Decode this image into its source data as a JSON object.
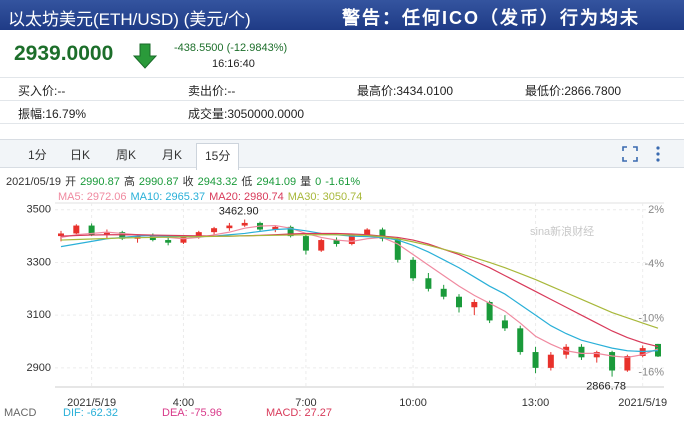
{
  "header": {
    "title": "以太坊美元(ETH/USD) (美元/个)",
    "notice": "警告：任何ICO（发币）行为均未"
  },
  "quote": {
    "price": "2939.0000",
    "change": "-438.5500 (-12.9843%)",
    "time": "16:16:40"
  },
  "stats": [
    [
      "买入价:--",
      "卖出价:--",
      "最高价:3434.0100",
      "最低价:2866.7800"
    ],
    [
      "振幅:16.79%",
      "成交量:3050000.0000"
    ]
  ],
  "tabs": [
    "1分",
    "日K",
    "周K",
    "月K",
    "15分"
  ],
  "active_tab": 4,
  "chart_data": {
    "type": "candlestick",
    "date": "2021/05/19",
    "info": [
      [
        "开",
        "2990.87"
      ],
      [
        "高",
        "2990.87"
      ],
      [
        "收",
        "2943.32"
      ],
      [
        "低",
        "2941.09"
      ],
      [
        "量",
        "0"
      ]
    ],
    "change": "-1.61%",
    "categories": [
      null,
      null,
      "2021/5/19",
      null,
      null,
      null,
      null,
      null,
      "4:00",
      null,
      null,
      null,
      null,
      null,
      null,
      null,
      "7:00",
      null,
      null,
      null,
      null,
      null,
      null,
      "10:00",
      null,
      null,
      null,
      null,
      null,
      null,
      null,
      "13:00",
      null,
      null,
      null,
      null,
      null,
      null,
      "2021/5/19",
      null
    ],
    "open": [
      3400,
      3410,
      3440,
      3405,
      3415,
      3390,
      3400,
      3385,
      3375,
      3395,
      3415,
      3430,
      3440,
      3450,
      3425,
      3435,
      3400,
      3345,
      3385,
      3370,
      3405,
      3425,
      3390,
      3310,
      3240,
      3200,
      3170,
      3130,
      3150,
      3080,
      3050,
      2960,
      2900,
      2950,
      2980,
      2940,
      2960,
      2890,
      2945,
      2990.87
    ],
    "high": [
      3420,
      3445,
      3448,
      3425,
      3420,
      3405,
      3410,
      3395,
      3400,
      3420,
      3435,
      3450,
      3462.9,
      3455,
      3440,
      3440,
      3405,
      3390,
      3395,
      3410,
      3430,
      3432,
      3395,
      3320,
      3260,
      3215,
      3180,
      3160,
      3155,
      3100,
      3060,
      2980,
      2960,
      2990,
      2990,
      2965,
      2965,
      2950,
      2985,
      2990.87
    ],
    "low": [
      3380,
      3405,
      3400,
      3390,
      3385,
      3375,
      3380,
      3365,
      3370,
      3390,
      3405,
      3420,
      3435,
      3420,
      3415,
      3395,
      3330,
      3340,
      3360,
      3365,
      3400,
      3380,
      3300,
      3230,
      3190,
      3160,
      3110,
      3100,
      3070,
      3040,
      2950,
      2880,
      2890,
      2935,
      2930,
      2920,
      2866.78,
      2885,
      2940,
      2941.09
    ],
    "close": [
      3410,
      3440,
      3405,
      3415,
      3390,
      3400,
      3385,
      3375,
      3395,
      3415,
      3430,
      3440,
      3450,
      3425,
      3435,
      3400,
      3345,
      3385,
      3370,
      3405,
      3425,
      3390,
      3310,
      3240,
      3200,
      3170,
      3130,
      3150,
      3080,
      3050,
      2960,
      2900,
      2950,
      2980,
      2940,
      2960,
      2890,
      2945,
      2975,
      2943.32
    ],
    "up_color": "#e8312b",
    "down_color": "#1a9a3a",
    "series": [
      {
        "name": "MA5: 2972.06",
        "color": "#f08aa0",
        "values": [
          3395,
          3405,
          3410,
          3415,
          3410,
          3405,
          3400,
          3395,
          3390,
          3395,
          3405,
          3415,
          3430,
          3438,
          3440,
          3430,
          3410,
          3395,
          3385,
          3380,
          3390,
          3395,
          3370,
          3330,
          3290,
          3250,
          3210,
          3175,
          3145,
          3115,
          3070,
          3020,
          2990,
          2965,
          2955,
          2955,
          2945,
          2940,
          2950,
          2972.06
        ]
      },
      {
        "name": "MA10: 2965.37",
        "color": "#2ab0d8",
        "values": [
          3360,
          3370,
          3380,
          3390,
          3395,
          3400,
          3402,
          3400,
          3398,
          3398,
          3400,
          3405,
          3410,
          3418,
          3425,
          3428,
          3420,
          3410,
          3405,
          3400,
          3398,
          3395,
          3385,
          3365,
          3340,
          3310,
          3280,
          3245,
          3210,
          3180,
          3140,
          3100,
          3060,
          3030,
          3005,
          2990,
          2975,
          2965,
          2962,
          2965.37
        ]
      },
      {
        "name": "MA20: 2980.74",
        "color": "#d83a5a",
        "values": [
          3400,
          3402,
          3404,
          3405,
          3405,
          3405,
          3404,
          3403,
          3402,
          3401,
          3400,
          3400,
          3401,
          3403,
          3405,
          3408,
          3410,
          3410,
          3410,
          3408,
          3405,
          3400,
          3395,
          3385,
          3370,
          3350,
          3330,
          3305,
          3280,
          3250,
          3220,
          3190,
          3160,
          3130,
          3100,
          3070,
          3040,
          3015,
          2995,
          2980.74
        ]
      },
      {
        "name": "MA30: 3050.74",
        "color": "#a8b83a",
        "values": [
          3385,
          3387,
          3389,
          3391,
          3393,
          3394,
          3395,
          3396,
          3397,
          3398,
          3399,
          3400,
          3401,
          3402,
          3403,
          3404,
          3405,
          3405,
          3405,
          3404,
          3402,
          3398,
          3390,
          3378,
          3365,
          3350,
          3335,
          3318,
          3300,
          3280,
          3258,
          3235,
          3210,
          3185,
          3160,
          3135,
          3110,
          3090,
          3070,
          3050.74
        ]
      }
    ],
    "ylim": [
      2835,
      3518
    ],
    "yticks": [
      2900,
      3100,
      3300,
      3500
    ],
    "y2lim": [
      -17.37,
      2.54
    ],
    "y2ticks": [
      {
        "value": 2,
        "label": "2%"
      },
      {
        "value": -4,
        "label": "-4%"
      },
      {
        "value": -10,
        "label": "-10%"
      },
      {
        "value": -16,
        "label": "-16%"
      }
    ],
    "annotations": [
      {
        "value": 3462.9,
        "label": "3462.90"
      },
      {
        "value": 2866.78,
        "label": "2866.78"
      }
    ],
    "watermark": "sina新浪财经",
    "macd": {
      "name": "MACD",
      "items": [
        {
          "text": "DIF: -62.32",
          "color": "#2ab0d8"
        },
        {
          "text": "DEA: -75.96",
          "color": "#d83a8a"
        },
        {
          "text": "MACD: 27.27",
          "color": "#d83a5a"
        }
      ]
    }
  }
}
